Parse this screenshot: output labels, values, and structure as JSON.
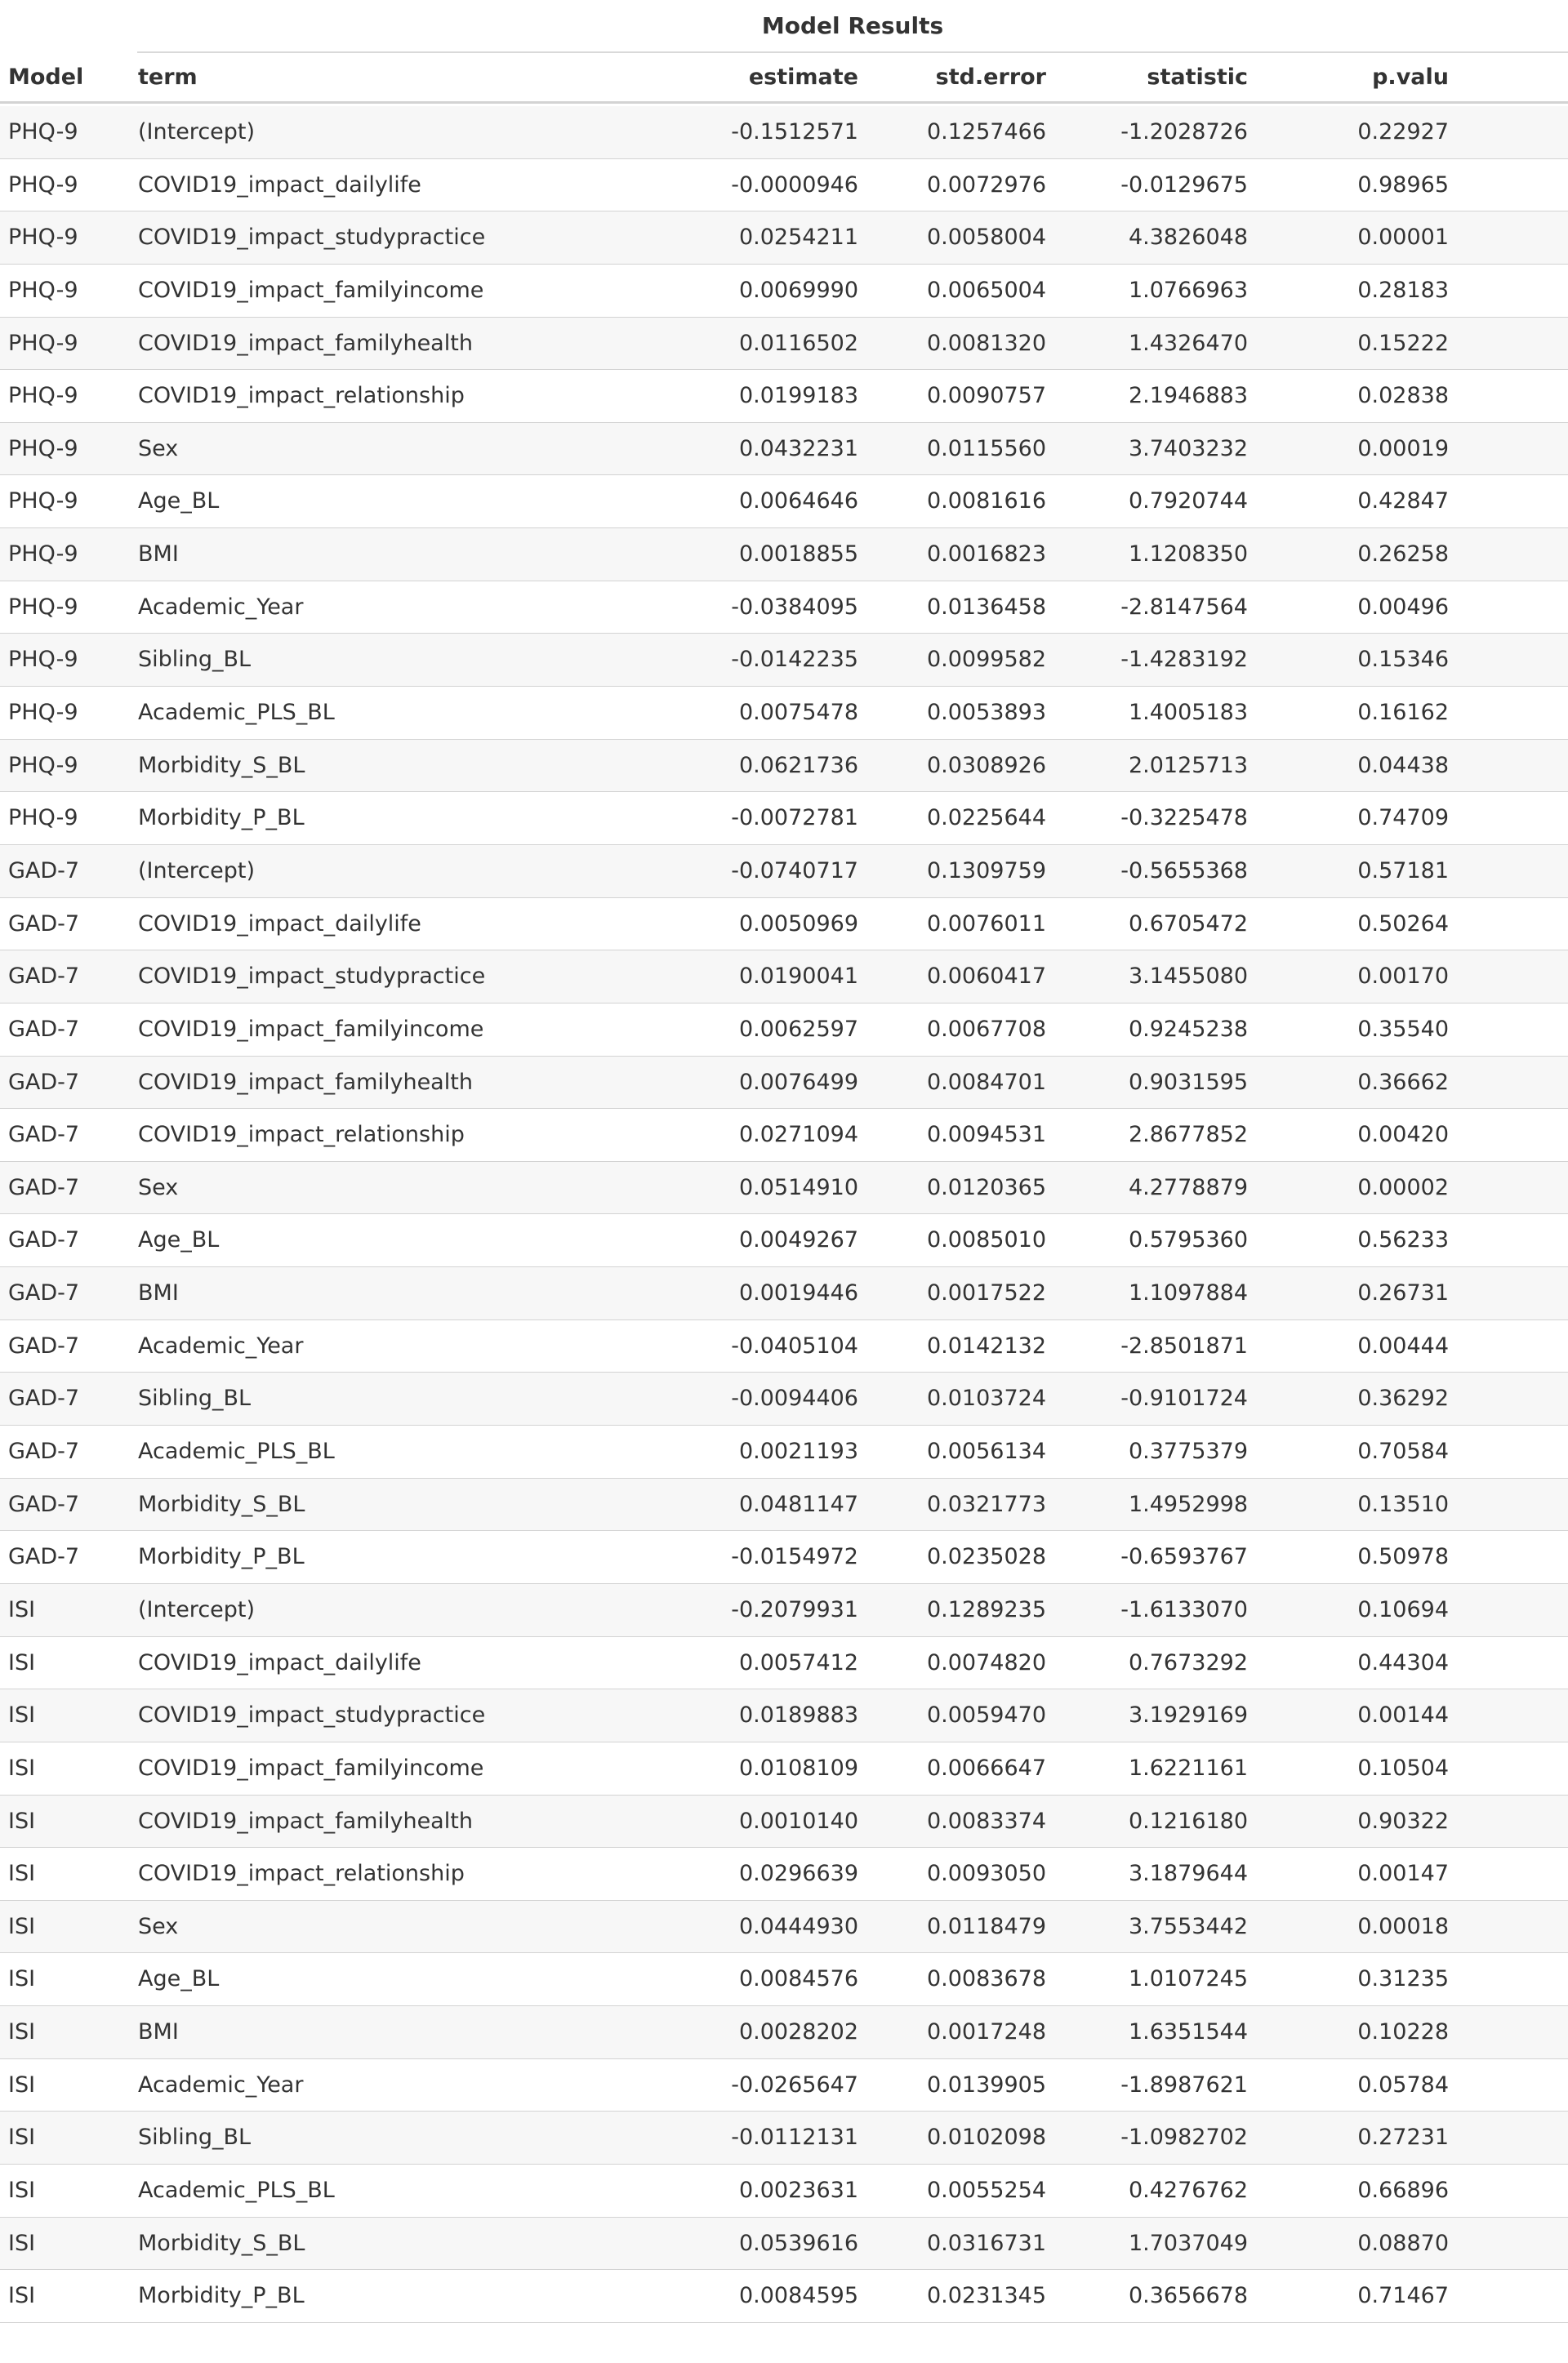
{
  "table": {
    "title": "Model Results",
    "columns": {
      "model": "Model",
      "term": "term",
      "estimate": "estimate",
      "std_error": "std.error",
      "statistic": "statistic",
      "p_value": "p.valu"
    },
    "rows": [
      {
        "model": "PHQ-9",
        "term": "(Intercept)",
        "estimate": "-0.1512571",
        "std_error": "0.1257466",
        "statistic": "-1.2028726",
        "p_value": "0.22927"
      },
      {
        "model": "PHQ-9",
        "term": "COVID19_impact_dailylife",
        "estimate": "-0.0000946",
        "std_error": "0.0072976",
        "statistic": "-0.0129675",
        "p_value": "0.98965"
      },
      {
        "model": "PHQ-9",
        "term": "COVID19_impact_studypractice",
        "estimate": "0.0254211",
        "std_error": "0.0058004",
        "statistic": "4.3826048",
        "p_value": "0.00001"
      },
      {
        "model": "PHQ-9",
        "term": "COVID19_impact_familyincome",
        "estimate": "0.0069990",
        "std_error": "0.0065004",
        "statistic": "1.0766963",
        "p_value": "0.28183"
      },
      {
        "model": "PHQ-9",
        "term": "COVID19_impact_familyhealth",
        "estimate": "0.0116502",
        "std_error": "0.0081320",
        "statistic": "1.4326470",
        "p_value": "0.15222"
      },
      {
        "model": "PHQ-9",
        "term": "COVID19_impact_relationship",
        "estimate": "0.0199183",
        "std_error": "0.0090757",
        "statistic": "2.1946883",
        "p_value": "0.02838"
      },
      {
        "model": "PHQ-9",
        "term": "Sex",
        "estimate": "0.0432231",
        "std_error": "0.0115560",
        "statistic": "3.7403232",
        "p_value": "0.00019"
      },
      {
        "model": "PHQ-9",
        "term": "Age_BL",
        "estimate": "0.0064646",
        "std_error": "0.0081616",
        "statistic": "0.7920744",
        "p_value": "0.42847"
      },
      {
        "model": "PHQ-9",
        "term": "BMI",
        "estimate": "0.0018855",
        "std_error": "0.0016823",
        "statistic": "1.1208350",
        "p_value": "0.26258"
      },
      {
        "model": "PHQ-9",
        "term": "Academic_Year",
        "estimate": "-0.0384095",
        "std_error": "0.0136458",
        "statistic": "-2.8147564",
        "p_value": "0.00496"
      },
      {
        "model": "PHQ-9",
        "term": "Sibling_BL",
        "estimate": "-0.0142235",
        "std_error": "0.0099582",
        "statistic": "-1.4283192",
        "p_value": "0.15346"
      },
      {
        "model": "PHQ-9",
        "term": "Academic_PLS_BL",
        "estimate": "0.0075478",
        "std_error": "0.0053893",
        "statistic": "1.4005183",
        "p_value": "0.16162"
      },
      {
        "model": "PHQ-9",
        "term": "Morbidity_S_BL",
        "estimate": "0.0621736",
        "std_error": "0.0308926",
        "statistic": "2.0125713",
        "p_value": "0.04438"
      },
      {
        "model": "PHQ-9",
        "term": "Morbidity_P_BL",
        "estimate": "-0.0072781",
        "std_error": "0.0225644",
        "statistic": "-0.3225478",
        "p_value": "0.74709"
      },
      {
        "model": "GAD-7",
        "term": "(Intercept)",
        "estimate": "-0.0740717",
        "std_error": "0.1309759",
        "statistic": "-0.5655368",
        "p_value": "0.57181"
      },
      {
        "model": "GAD-7",
        "term": "COVID19_impact_dailylife",
        "estimate": "0.0050969",
        "std_error": "0.0076011",
        "statistic": "0.6705472",
        "p_value": "0.50264"
      },
      {
        "model": "GAD-7",
        "term": "COVID19_impact_studypractice",
        "estimate": "0.0190041",
        "std_error": "0.0060417",
        "statistic": "3.1455080",
        "p_value": "0.00170"
      },
      {
        "model": "GAD-7",
        "term": "COVID19_impact_familyincome",
        "estimate": "0.0062597",
        "std_error": "0.0067708",
        "statistic": "0.9245238",
        "p_value": "0.35540"
      },
      {
        "model": "GAD-7",
        "term": "COVID19_impact_familyhealth",
        "estimate": "0.0076499",
        "std_error": "0.0084701",
        "statistic": "0.9031595",
        "p_value": "0.36662"
      },
      {
        "model": "GAD-7",
        "term": "COVID19_impact_relationship",
        "estimate": "0.0271094",
        "std_error": "0.0094531",
        "statistic": "2.8677852",
        "p_value": "0.00420"
      },
      {
        "model": "GAD-7",
        "term": "Sex",
        "estimate": "0.0514910",
        "std_error": "0.0120365",
        "statistic": "4.2778879",
        "p_value": "0.00002"
      },
      {
        "model": "GAD-7",
        "term": "Age_BL",
        "estimate": "0.0049267",
        "std_error": "0.0085010",
        "statistic": "0.5795360",
        "p_value": "0.56233"
      },
      {
        "model": "GAD-7",
        "term": "BMI",
        "estimate": "0.0019446",
        "std_error": "0.0017522",
        "statistic": "1.1097884",
        "p_value": "0.26731"
      },
      {
        "model": "GAD-7",
        "term": "Academic_Year",
        "estimate": "-0.0405104",
        "std_error": "0.0142132",
        "statistic": "-2.8501871",
        "p_value": "0.00444"
      },
      {
        "model": "GAD-7",
        "term": "Sibling_BL",
        "estimate": "-0.0094406",
        "std_error": "0.0103724",
        "statistic": "-0.9101724",
        "p_value": "0.36292"
      },
      {
        "model": "GAD-7",
        "term": "Academic_PLS_BL",
        "estimate": "0.0021193",
        "std_error": "0.0056134",
        "statistic": "0.3775379",
        "p_value": "0.70584"
      },
      {
        "model": "GAD-7",
        "term": "Morbidity_S_BL",
        "estimate": "0.0481147",
        "std_error": "0.0321773",
        "statistic": "1.4952998",
        "p_value": "0.13510"
      },
      {
        "model": "GAD-7",
        "term": "Morbidity_P_BL",
        "estimate": "-0.0154972",
        "std_error": "0.0235028",
        "statistic": "-0.6593767",
        "p_value": "0.50978"
      },
      {
        "model": "ISI",
        "term": "(Intercept)",
        "estimate": "-0.2079931",
        "std_error": "0.1289235",
        "statistic": "-1.6133070",
        "p_value": "0.10694"
      },
      {
        "model": "ISI",
        "term": "COVID19_impact_dailylife",
        "estimate": "0.0057412",
        "std_error": "0.0074820",
        "statistic": "0.7673292",
        "p_value": "0.44304"
      },
      {
        "model": "ISI",
        "term": "COVID19_impact_studypractice",
        "estimate": "0.0189883",
        "std_error": "0.0059470",
        "statistic": "3.1929169",
        "p_value": "0.00144"
      },
      {
        "model": "ISI",
        "term": "COVID19_impact_familyincome",
        "estimate": "0.0108109",
        "std_error": "0.0066647",
        "statistic": "1.6221161",
        "p_value": "0.10504"
      },
      {
        "model": "ISI",
        "term": "COVID19_impact_familyhealth",
        "estimate": "0.0010140",
        "std_error": "0.0083374",
        "statistic": "0.1216180",
        "p_value": "0.90322"
      },
      {
        "model": "ISI",
        "term": "COVID19_impact_relationship",
        "estimate": "0.0296639",
        "std_error": "0.0093050",
        "statistic": "3.1879644",
        "p_value": "0.00147"
      },
      {
        "model": "ISI",
        "term": "Sex",
        "estimate": "0.0444930",
        "std_error": "0.0118479",
        "statistic": "3.7553442",
        "p_value": "0.00018"
      },
      {
        "model": "ISI",
        "term": "Age_BL",
        "estimate": "0.0084576",
        "std_error": "0.0083678",
        "statistic": "1.0107245",
        "p_value": "0.31235"
      },
      {
        "model": "ISI",
        "term": "BMI",
        "estimate": "0.0028202",
        "std_error": "0.0017248",
        "statistic": "1.6351544",
        "p_value": "0.10228"
      },
      {
        "model": "ISI",
        "term": "Academic_Year",
        "estimate": "-0.0265647",
        "std_error": "0.0139905",
        "statistic": "-1.8987621",
        "p_value": "0.05784"
      },
      {
        "model": "ISI",
        "term": "Sibling_BL",
        "estimate": "-0.0112131",
        "std_error": "0.0102098",
        "statistic": "-1.0982702",
        "p_value": "0.27231"
      },
      {
        "model": "ISI",
        "term": "Academic_PLS_BL",
        "estimate": "0.0023631",
        "std_error": "0.0055254",
        "statistic": "0.4276762",
        "p_value": "0.66896"
      },
      {
        "model": "ISI",
        "term": "Morbidity_S_BL",
        "estimate": "0.0539616",
        "std_error": "0.0316731",
        "statistic": "1.7037049",
        "p_value": "0.08870"
      },
      {
        "model": "ISI",
        "term": "Morbidity_P_BL",
        "estimate": "0.0084595",
        "std_error": "0.0231345",
        "statistic": "0.3656678",
        "p_value": "0.71467"
      }
    ]
  }
}
